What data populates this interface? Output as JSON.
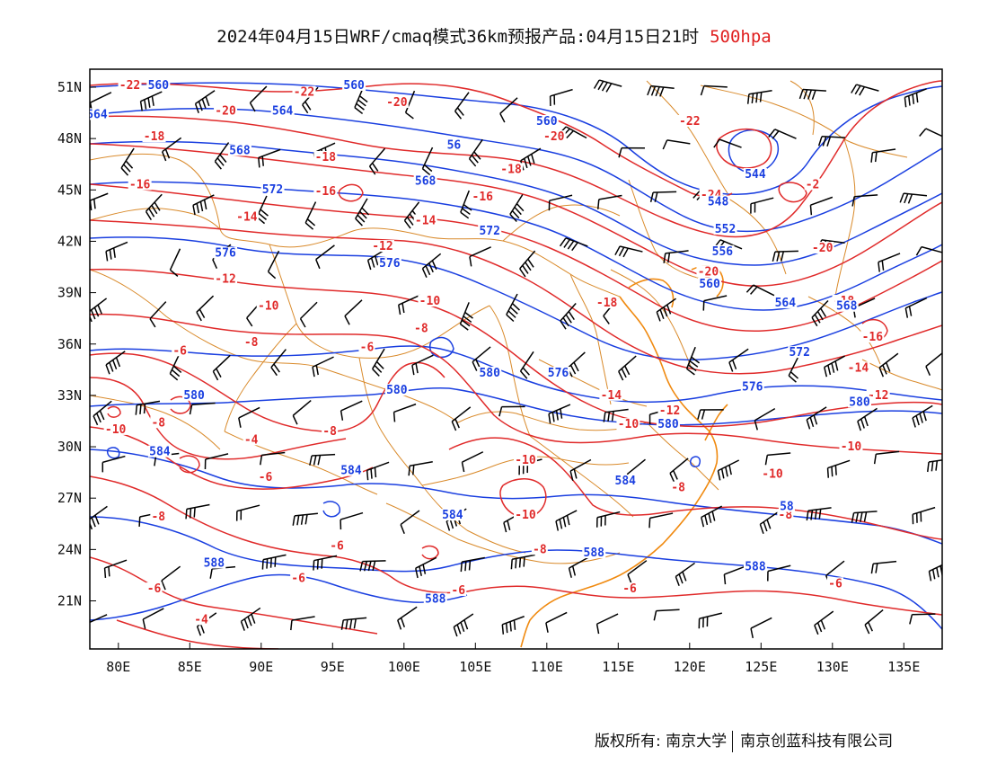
{
  "title": {
    "text": "2024年04月15日WRF/cmaq模式36km预报产品:04月15日21时",
    "level": "500hpa"
  },
  "colors": {
    "temperature": "#e02a2a",
    "height": "#1a3fe0",
    "boundary": "#d98a2b",
    "coast": "#f08a10",
    "barb": "#000000"
  },
  "axes": {
    "lat_labels": [
      "51N",
      "48N",
      "45N",
      "42N",
      "39N",
      "36N",
      "33N",
      "30N",
      "27N",
      "24N",
      "21N"
    ],
    "lat_values": [
      51,
      48,
      45,
      42,
      39,
      36,
      33,
      30,
      27,
      24,
      21
    ],
    "lon_labels": [
      "80E",
      "85E",
      "90E",
      "95E",
      "100E",
      "105E",
      "110E",
      "115E",
      "120E",
      "125E",
      "130E",
      "135E"
    ],
    "lon_values": [
      80,
      85,
      90,
      95,
      100,
      105,
      110,
      115,
      120,
      125,
      130,
      135
    ],
    "lon_range": [
      78,
      138
    ],
    "lat_range": [
      18,
      52
    ]
  },
  "contour_labels": {
    "temperature": [
      {
        "t": "-22",
        "lon": 80.8,
        "lat": 51
      },
      {
        "t": "-22",
        "lon": 93,
        "lat": 50.6
      },
      {
        "t": "-20",
        "lon": 87.5,
        "lat": 49.5
      },
      {
        "t": "-20",
        "lon": 99.5,
        "lat": 50
      },
      {
        "t": "-18",
        "lon": 82.5,
        "lat": 48
      },
      {
        "t": "-20",
        "lon": 110.5,
        "lat": 48
      },
      {
        "t": "-22",
        "lon": 120,
        "lat": 48.9
      },
      {
        "t": "-18",
        "lon": 94.5,
        "lat": 46.8
      },
      {
        "t": "-18",
        "lon": 107.5,
        "lat": 46.1
      },
      {
        "t": "-16",
        "lon": 81.5,
        "lat": 45.2
      },
      {
        "t": "-16",
        "lon": 94.5,
        "lat": 44.8
      },
      {
        "t": "-16",
        "lon": 105.5,
        "lat": 44.5
      },
      {
        "t": "-24",
        "lon": 121.5,
        "lat": 44.6
      },
      {
        "t": "-2",
        "lon": 128.6,
        "lat": 45.2
      },
      {
        "t": "-14",
        "lon": 89,
        "lat": 43.3
      },
      {
        "t": "-14",
        "lon": 101.5,
        "lat": 43.1
      },
      {
        "t": "-12",
        "lon": 98.5,
        "lat": 41.6
      },
      {
        "t": "-12",
        "lon": 87.5,
        "lat": 39.7
      },
      {
        "t": "-20",
        "lon": 129.3,
        "lat": 41.5
      },
      {
        "t": "-20",
        "lon": 121.3,
        "lat": 40.1
      },
      {
        "t": "-10",
        "lon": 90.5,
        "lat": 38.1
      },
      {
        "t": "-10",
        "lon": 101.8,
        "lat": 38.4
      },
      {
        "t": "-18",
        "lon": 114.2,
        "lat": 38.3
      },
      {
        "t": "-18",
        "lon": 130.8,
        "lat": 38.4
      },
      {
        "t": "-8",
        "lon": 89.3,
        "lat": 36
      },
      {
        "t": "-8",
        "lon": 101.2,
        "lat": 36.8
      },
      {
        "t": "-6",
        "lon": 84.3,
        "lat": 35.5
      },
      {
        "t": "-6",
        "lon": 97.4,
        "lat": 35.7
      },
      {
        "t": "-16",
        "lon": 132.8,
        "lat": 36.3
      },
      {
        "t": "-14",
        "lon": 114.5,
        "lat": 32.9
      },
      {
        "t": "-14",
        "lon": 131.8,
        "lat": 34.5
      },
      {
        "t": "-12",
        "lon": 118.6,
        "lat": 32
      },
      {
        "t": "-12",
        "lon": 133.2,
        "lat": 32.9
      },
      {
        "t": "-10",
        "lon": 79.8,
        "lat": 30.9
      },
      {
        "t": "-8",
        "lon": 82.8,
        "lat": 31.3
      },
      {
        "t": "-8",
        "lon": 94.8,
        "lat": 30.8
      },
      {
        "t": "-4",
        "lon": 89.3,
        "lat": 30.3
      },
      {
        "t": "-10",
        "lon": 115.7,
        "lat": 31.2
      },
      {
        "t": "-10",
        "lon": 108.5,
        "lat": 29.1
      },
      {
        "t": "-10",
        "lon": 131.3,
        "lat": 29.9
      },
      {
        "t": "-10",
        "lon": 125.8,
        "lat": 28.3
      },
      {
        "t": "-6",
        "lon": 90.3,
        "lat": 28.1
      },
      {
        "t": "-8",
        "lon": 119.2,
        "lat": 27.5
      },
      {
        "t": "-8",
        "lon": 82.8,
        "lat": 25.8
      },
      {
        "t": "-8",
        "lon": 126.7,
        "lat": 25.9
      },
      {
        "t": "-10",
        "lon": 108.5,
        "lat": 25.9
      },
      {
        "t": "-6",
        "lon": 95.3,
        "lat": 24.1
      },
      {
        "t": "-8",
        "lon": 109.5,
        "lat": 23.9
      },
      {
        "t": "-6",
        "lon": 92.6,
        "lat": 22.2
      },
      {
        "t": "-6",
        "lon": 82.5,
        "lat": 21.6
      },
      {
        "t": "-6",
        "lon": 103.8,
        "lat": 21.5
      },
      {
        "t": "-6",
        "lon": 115.8,
        "lat": 21.6
      },
      {
        "t": "-6",
        "lon": 130.2,
        "lat": 21.9
      },
      {
        "t": "-4",
        "lon": 85.8,
        "lat": 19.8
      }
    ],
    "height": [
      {
        "t": "560",
        "lon": 82.8,
        "lat": 51
      },
      {
        "t": "560",
        "lon": 96.5,
        "lat": 51
      },
      {
        "t": "564",
        "lon": 78.5,
        "lat": 49.3
      },
      {
        "t": "564",
        "lon": 91.5,
        "lat": 49.5
      },
      {
        "t": "560",
        "lon": 110,
        "lat": 48.9
      },
      {
        "t": "56",
        "lon": 103.5,
        "lat": 47.5
      },
      {
        "t": "568",
        "lon": 88.5,
        "lat": 47.2
      },
      {
        "t": "544",
        "lon": 124.6,
        "lat": 45.8
      },
      {
        "t": "568",
        "lon": 101.5,
        "lat": 45.4
      },
      {
        "t": "572",
        "lon": 90.8,
        "lat": 44.9
      },
      {
        "t": "548",
        "lon": 122,
        "lat": 44.2
      },
      {
        "t": "552",
        "lon": 122.5,
        "lat": 42.6
      },
      {
        "t": "572",
        "lon": 106,
        "lat": 42.5
      },
      {
        "t": "576",
        "lon": 87.5,
        "lat": 41.2
      },
      {
        "t": "556",
        "lon": 122.3,
        "lat": 41.3
      },
      {
        "t": "576",
        "lon": 99,
        "lat": 40.6
      },
      {
        "t": "560",
        "lon": 121.4,
        "lat": 39.4
      },
      {
        "t": "564",
        "lon": 126.7,
        "lat": 38.3
      },
      {
        "t": "568",
        "lon": 131,
        "lat": 38.1
      },
      {
        "t": "572",
        "lon": 127.7,
        "lat": 35.4
      },
      {
        "t": "580",
        "lon": 106,
        "lat": 34.2
      },
      {
        "t": "576",
        "lon": 110.8,
        "lat": 34.2
      },
      {
        "t": "576",
        "lon": 124.4,
        "lat": 33.4
      },
      {
        "t": "580",
        "lon": 85.3,
        "lat": 32.9
      },
      {
        "t": "580",
        "lon": 99.5,
        "lat": 33.2
      },
      {
        "t": "580",
        "lon": 131.9,
        "lat": 32.5
      },
      {
        "t": "580",
        "lon": 118.5,
        "lat": 31.2
      },
      {
        "t": "584",
        "lon": 82.9,
        "lat": 29.6
      },
      {
        "t": "584",
        "lon": 96.3,
        "lat": 28.5
      },
      {
        "t": "584",
        "lon": 115.5,
        "lat": 27.9
      },
      {
        "t": "584",
        "lon": 103.4,
        "lat": 25.9
      },
      {
        "t": "58",
        "lon": 126.8,
        "lat": 26.4
      },
      {
        "t": "588",
        "lon": 86.7,
        "lat": 23.1
      },
      {
        "t": "588",
        "lon": 113.3,
        "lat": 23.7
      },
      {
        "t": "588",
        "lon": 124.6,
        "lat": 22.9
      },
      {
        "t": "588",
        "lon": 102.2,
        "lat": 21
      }
    ]
  },
  "footer": {
    "owner": "版权所有: 南京大学",
    "company": "南京创蓝科技有限公司"
  }
}
